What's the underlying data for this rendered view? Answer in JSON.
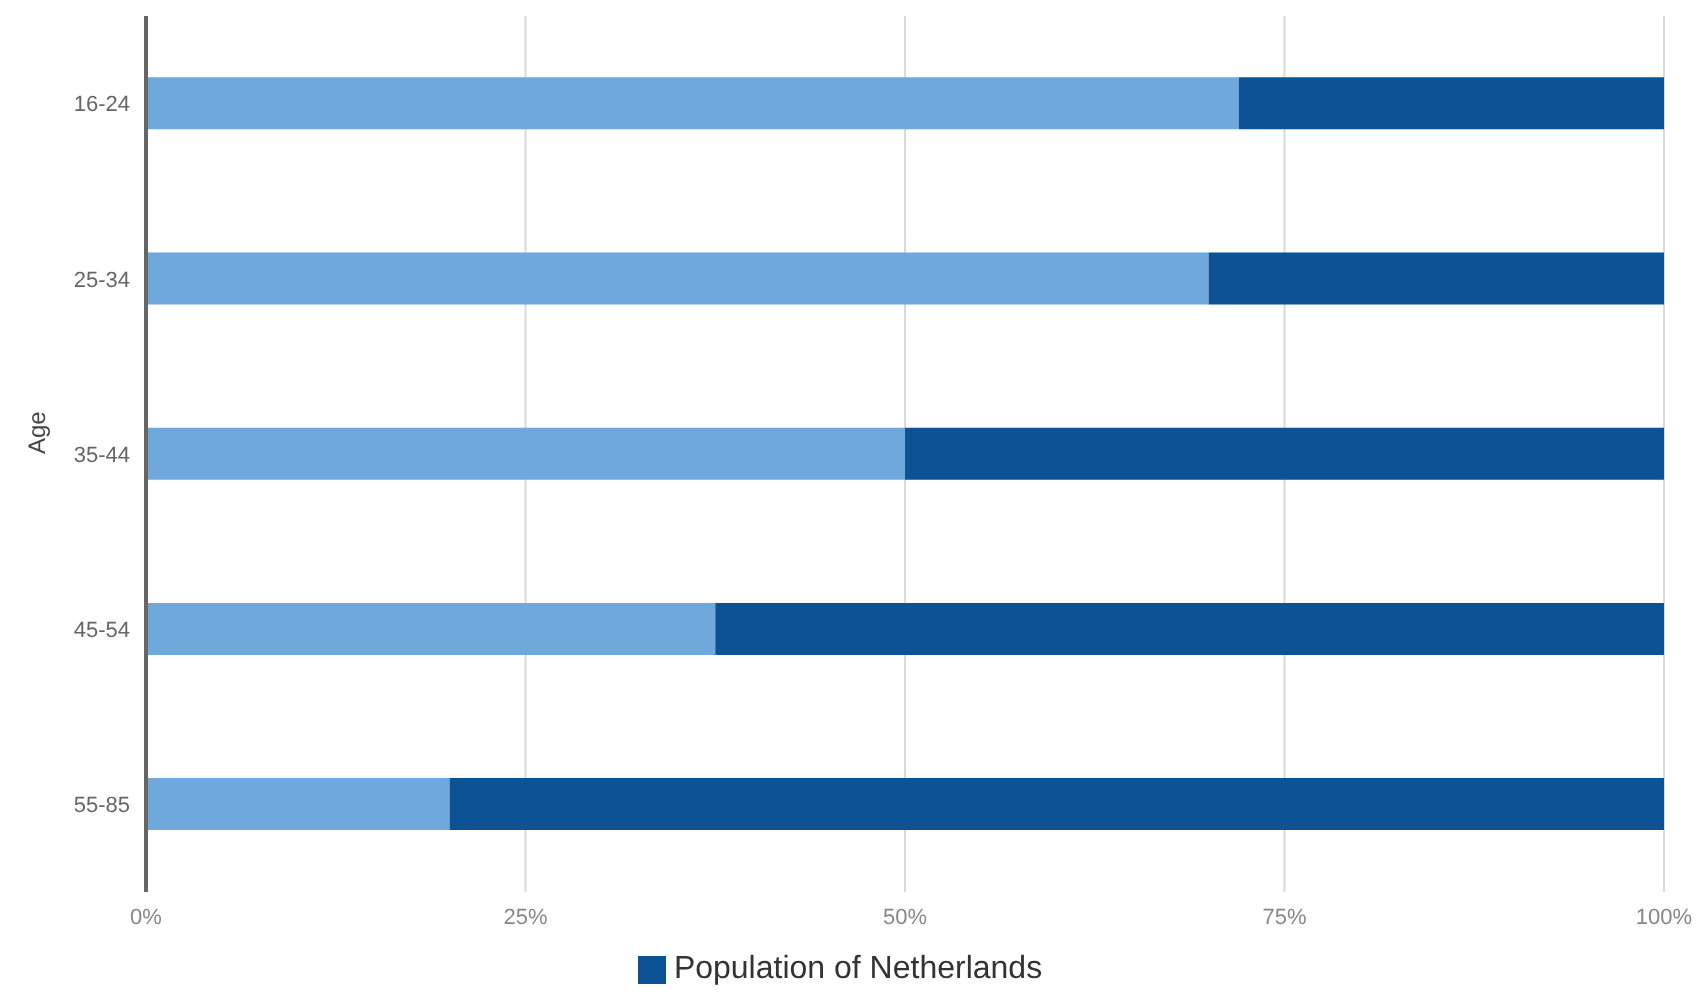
{
  "chart_data": {
    "type": "bar",
    "orientation": "horizontal",
    "stacked": true,
    "ylabel": "Age",
    "categories": [
      "16-24",
      "25-34",
      "35-44",
      "45-54",
      "55-85"
    ],
    "series": [
      {
        "color": "#6fa8dc",
        "values": [
          72,
          70,
          50,
          37.5,
          20
        ]
      },
      {
        "name": "Population of Netherlands",
        "color": "#0b5394",
        "values": [
          28,
          30,
          50,
          62.5,
          80
        ]
      }
    ],
    "xlim": [
      0,
      100
    ],
    "xticks": [
      {
        "value": 0,
        "label": "0%"
      },
      {
        "value": 25,
        "label": "25%"
      },
      {
        "value": 50,
        "label": "50%"
      },
      {
        "value": 75,
        "label": "75%"
      },
      {
        "value": 100,
        "label": "100%"
      }
    ],
    "grid": "x",
    "legend": "bottom"
  }
}
